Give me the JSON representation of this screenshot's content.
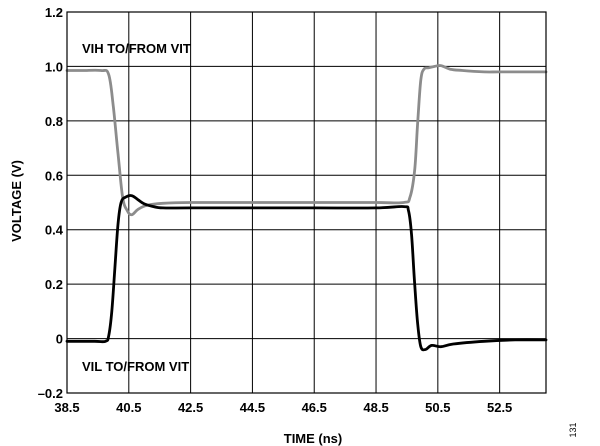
{
  "chart_data": {
    "type": "line",
    "xlabel": "TIME (ns)",
    "ylabel": "VOLTAGE (V)",
    "xlim": [
      38.5,
      54
    ],
    "ylim": [
      -0.2,
      1.2
    ],
    "x_ticks": [
      38.5,
      40.5,
      42.5,
      44.5,
      46.5,
      48.5,
      50.5,
      52.5
    ],
    "x_tick_labels": [
      "38.5",
      "40.5",
      "42.5",
      "44.5",
      "46.5",
      "48.5",
      "50.5",
      "52.5"
    ],
    "y_ticks": [
      -0.2,
      0,
      0.2,
      0.4,
      0.6,
      0.8,
      1.0,
      1.2
    ],
    "y_tick_labels": [
      "–0.2",
      "0",
      "0.2",
      "0.4",
      "0.6",
      "0.8",
      "1.0",
      "1.2"
    ],
    "grid": true,
    "annotations": {
      "vih": "VIH TO/FROM VIT",
      "vil": "VIL TO/FROM VIT"
    },
    "figure_number": "131",
    "series": [
      {
        "color": "#8c8c8c",
        "x": [
          38.5,
          39.0,
          39.6,
          39.85,
          40.0,
          40.15,
          40.3,
          40.45,
          40.6,
          40.8,
          41.1,
          41.6,
          42.5,
          44.5,
          46.5,
          48.5,
          49.4,
          49.6,
          49.75,
          49.85,
          49.95,
          50.05,
          50.2,
          50.4,
          50.6,
          50.9,
          51.3,
          52.0,
          52.5,
          53.5,
          54.0
        ],
        "y": [
          0.985,
          0.985,
          0.985,
          0.97,
          0.85,
          0.68,
          0.52,
          0.47,
          0.455,
          0.475,
          0.49,
          0.497,
          0.5,
          0.5,
          0.5,
          0.5,
          0.5,
          0.52,
          0.62,
          0.8,
          0.95,
          0.99,
          0.995,
          1.0,
          1.003,
          0.99,
          0.985,
          0.98,
          0.98,
          0.98,
          0.98
        ]
      },
      {
        "color": "#000000",
        "x": [
          38.5,
          39.4,
          39.75,
          39.85,
          39.95,
          40.05,
          40.15,
          40.25,
          40.4,
          40.6,
          40.8,
          41.0,
          41.3,
          41.6,
          42.5,
          44.5,
          46.5,
          48.5,
          49.4,
          49.55,
          49.65,
          49.75,
          49.85,
          49.95,
          50.1,
          50.3,
          50.6,
          51.0,
          52.0,
          53.0,
          54.0
        ],
        "y": [
          -0.01,
          -0.01,
          -0.01,
          0.01,
          0.1,
          0.26,
          0.42,
          0.5,
          0.52,
          0.525,
          0.51,
          0.495,
          0.485,
          0.48,
          0.48,
          0.48,
          0.48,
          0.48,
          0.485,
          0.47,
          0.38,
          0.2,
          0.05,
          -0.03,
          -0.04,
          -0.025,
          -0.03,
          -0.02,
          -0.01,
          -0.005,
          -0.005
        ]
      }
    ]
  }
}
